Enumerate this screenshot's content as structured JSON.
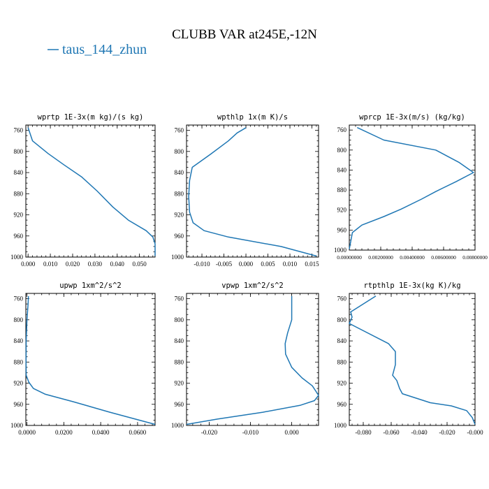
{
  "figure": {
    "title": "CLUBB VAR at245E,-12N",
    "legend": {
      "label": "taus_144_zhun",
      "color": "#1f77b4"
    }
  },
  "chart_data": [
    {
      "type": "line",
      "title": "wprtp  1E-3x(m kg)/(s kg)",
      "xlim": [
        -0.001,
        0.057
      ],
      "xticks": [
        0.0,
        0.01,
        0.02,
        0.03,
        0.04,
        0.05
      ],
      "xtick_labels": [
        "0.000",
        "0.010",
        "0.020",
        "0.030",
        "0.040",
        "0.050"
      ],
      "ylim": [
        1000,
        750
      ],
      "yticks": [
        760,
        800,
        840,
        880,
        920,
        960,
        1000
      ],
      "ytick_labels": [
        "760",
        "800",
        "840",
        "880",
        "920",
        "960",
        "1000"
      ],
      "series": [
        {
          "color": "#1f77b4",
          "x": [
            0.0,
            0.002,
            0.009,
            0.016,
            0.024,
            0.031,
            0.038,
            0.045,
            0.053,
            0.056,
            0.057,
            0.057
          ],
          "y": [
            755,
            780,
            804,
            825,
            848,
            875,
            905,
            930,
            950,
            962,
            975,
            998
          ]
        }
      ]
    },
    {
      "type": "line",
      "title": "wpthlp  1x(m K)/s",
      "xlim": [
        -0.0135,
        0.0165
      ],
      "xticks": [
        -0.01,
        -0.005,
        0.0,
        0.005,
        0.01,
        0.015
      ],
      "xtick_labels": [
        "-0.010",
        "-0.005",
        "0.000",
        "0.005",
        "0.010",
        "0.015"
      ],
      "ylim": [
        1000,
        750
      ],
      "yticks": [
        760,
        800,
        840,
        880,
        920,
        960,
        1000
      ],
      "ytick_labels": [
        "760",
        "800",
        "840",
        "880",
        "920",
        "960",
        "1000"
      ],
      "series": [
        {
          "color": "#1f77b4",
          "x": [
            0.0,
            -0.002,
            -0.004,
            -0.008,
            -0.0122,
            -0.0128,
            -0.013,
            -0.0128,
            -0.012,
            -0.0095,
            -0.004,
            0.008,
            0.016
          ],
          "y": [
            755,
            765,
            780,
            805,
            830,
            855,
            885,
            915,
            935,
            950,
            962,
            980,
            998
          ]
        }
      ]
    },
    {
      "type": "line",
      "title": "wprcp  1E-3x(m/s) (kg/kg)",
      "xlim": [
        0.0,
        0.008
      ],
      "xticks": [
        0.0,
        0.002,
        0.004,
        0.006,
        0.008
      ],
      "xtick_labels": [
        "0.00000000",
        "0.00200000",
        "0.00400000",
        "0.00600000",
        "0.00800000"
      ],
      "ylim": [
        1000,
        750
      ],
      "yticks": [
        760,
        800,
        840,
        880,
        920,
        960,
        1000
      ],
      "ytick_labels": [
        "760",
        "800",
        "840",
        "880",
        "920",
        "960",
        "1000"
      ],
      "series": [
        {
          "color": "#1f77b4",
          "x": [
            0.0005,
            0.0022,
            0.0055,
            0.007,
            0.0079,
            0.0068,
            0.0055,
            0.0046,
            0.0033,
            0.0022,
            0.0008,
            0.0002,
            0.0
          ],
          "y": [
            755,
            780,
            800,
            825,
            845,
            863,
            883,
            898,
            918,
            933,
            950,
            965,
            998
          ]
        }
      ]
    },
    {
      "type": "line",
      "title": "upwp  1xm^2/s^2",
      "xlim": [
        -0.0006,
        0.0695
      ],
      "xticks": [
        0.0,
        0.02,
        0.04,
        0.06
      ],
      "xtick_labels": [
        "0.0000",
        "0.0200",
        "0.0400",
        "0.0600"
      ],
      "ylim": [
        1000,
        750
      ],
      "yticks": [
        760,
        800,
        840,
        880,
        920,
        960,
        1000
      ],
      "ytick_labels": [
        "760",
        "800",
        "840",
        "880",
        "920",
        "960",
        "1000"
      ],
      "series": [
        {
          "color": "#1f77b4",
          "x": [
            0.0008,
            0.0006,
            0.0,
            -0.0004,
            -0.0005,
            -0.0004,
            0.001,
            0.0035,
            0.01,
            0.025,
            0.045,
            0.0695
          ],
          "y": [
            755,
            770,
            800,
            840,
            880,
            905,
            918,
            930,
            941,
            955,
            975,
            998
          ]
        }
      ]
    },
    {
      "type": "line",
      "title": "vpwp  1xm^2/s^2",
      "xlim": [
        -0.0255,
        0.0065
      ],
      "xticks": [
        -0.02,
        -0.01,
        0.0
      ],
      "xtick_labels": [
        "-0.020",
        "-0.010",
        "0.000"
      ],
      "ylim": [
        1000,
        750
      ],
      "yticks": [
        760,
        800,
        840,
        880,
        920,
        960,
        1000
      ],
      "ytick_labels": [
        "760",
        "800",
        "840",
        "880",
        "920",
        "960",
        "1000"
      ],
      "series": [
        {
          "color": "#1f77b4",
          "x": [
            0.0,
            0.0,
            -0.001,
            -0.0016,
            -0.0015,
            0.0,
            0.0025,
            0.005,
            0.0065,
            0.0055,
            0.002,
            -0.007,
            -0.018,
            -0.0255
          ],
          "y": [
            755,
            800,
            825,
            845,
            865,
            890,
            910,
            925,
            943,
            953,
            962,
            975,
            988,
            998
          ]
        }
      ]
    },
    {
      "type": "line",
      "title": "rtpthlp  1E-3x(kg K)/kg",
      "xlim": [
        -0.09,
        0.0
      ],
      "xticks": [
        -0.08,
        -0.06,
        -0.04,
        -0.02,
        0.0
      ],
      "xtick_labels": [
        "-0.080",
        "-0.060",
        "-0.040",
        "-0.020",
        "-0.000"
      ],
      "ylim": [
        1000,
        750
      ],
      "yticks": [
        760,
        800,
        840,
        880,
        920,
        960,
        1000
      ],
      "ytick_labels": [
        "760",
        "800",
        "840",
        "880",
        "920",
        "960",
        "1000"
      ],
      "series": [
        {
          "color": "#1f77b4",
          "x": [
            -0.071,
            -0.089,
            -0.088,
            -0.09,
            -0.062,
            -0.057,
            -0.057,
            -0.059,
            -0.056,
            -0.054,
            -0.052,
            -0.032,
            -0.017,
            -0.006,
            -0.002,
            0.0
          ],
          "y": [
            755,
            785,
            795,
            807,
            845,
            860,
            885,
            905,
            915,
            930,
            940,
            957,
            963,
            972,
            985,
            998
          ]
        }
      ]
    }
  ]
}
